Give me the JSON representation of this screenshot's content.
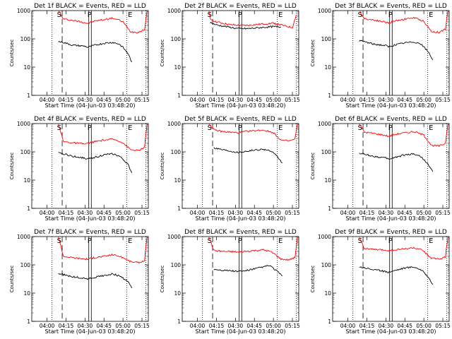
{
  "chart_data": [
    {
      "type": "line",
      "title": "Det 1f BLACK = Events, RED = LLD",
      "xlabel": "Start Time (04-Jun-03 03:48:20)",
      "ylabel": "Counts/sec",
      "x_ticks": [
        "04:00",
        "04:15",
        "04:30",
        "04:45",
        "05:00",
        "05:15"
      ],
      "y_ticks": [
        "1",
        "10",
        "100",
        "1000"
      ],
      "yscale": "log",
      "ylim": [
        1,
        1000
      ],
      "markers": [
        "S",
        "P",
        "E"
      ],
      "series": [
        {
          "color": "#ff0000",
          "x": [
            "04:09",
            "04:13",
            "04:20",
            "04:30",
            "04:32",
            "04:38",
            "04:45",
            "04:52",
            "04:57",
            "05:00",
            "05:06",
            "05:12",
            "05:17",
            "05:19"
          ],
          "values": [
            1000,
            500,
            450,
            380,
            350,
            430,
            480,
            540,
            460,
            400,
            180,
            170,
            210,
            1000
          ]
        },
        {
          "color": "#000000",
          "x": [
            "04:09",
            "04:13",
            "04:20",
            "04:30",
            "04:32",
            "04:38",
            "04:45",
            "04:52",
            "04:57",
            "05:00",
            "05:04",
            "05:07"
          ],
          "values": [
            80,
            75,
            60,
            55,
            50,
            60,
            70,
            75,
            65,
            50,
            30,
            15
          ]
        }
      ]
    },
    {
      "type": "line",
      "title": "Det 2f BLACK = Events, RED = LLD",
      "xlabel": "Start Time (04-Jun-03 03:48:20)",
      "ylabel": "Counts/sec",
      "x_ticks": [
        "04:00",
        "04:15",
        "04:30",
        "04:45",
        "05:00",
        "05:15"
      ],
      "y_ticks": [
        "1",
        "10",
        "100",
        "1000"
      ],
      "yscale": "log",
      "ylim": [
        1,
        1000
      ],
      "markers": [
        "S",
        "P",
        "E"
      ],
      "series": [
        {
          "color": "#ff0000",
          "x": [
            "04:09",
            "04:10",
            "04:15",
            "04:25",
            "04:32",
            "04:40",
            "04:50",
            "05:00",
            "05:10",
            "05:15",
            "05:18"
          ],
          "values": [
            1000,
            500,
            400,
            320,
            300,
            300,
            330,
            360,
            280,
            250,
            700
          ]
        },
        {
          "color": "#000000",
          "x": [
            "04:10",
            "04:15",
            "04:25",
            "04:32",
            "04:40",
            "04:50",
            "05:00",
            "05:06"
          ],
          "values": [
            380,
            310,
            260,
            230,
            230,
            250,
            270,
            260
          ]
        }
      ]
    },
    {
      "type": "line",
      "title": "Det 3f BLACK = Events, RED = LLD",
      "xlabel": "Start Time (04-Jun-03 03:48:20)",
      "ylabel": "Counts/sec",
      "x_ticks": [
        "04:00",
        "04:15",
        "04:30",
        "04:45",
        "05:00",
        "05:15"
      ],
      "y_ticks": [
        "1",
        "10",
        "100",
        "1000"
      ],
      "yscale": "log",
      "ylim": [
        1,
        1000
      ],
      "markers": [
        "S",
        "P",
        "E"
      ],
      "series": [
        {
          "color": "#ff0000",
          "x": [
            "04:09",
            "04:13",
            "04:20",
            "04:30",
            "04:32",
            "04:38",
            "04:45",
            "04:52",
            "04:57",
            "05:00",
            "05:06",
            "05:12",
            "05:17",
            "05:19"
          ],
          "values": [
            1000,
            520,
            470,
            390,
            360,
            440,
            500,
            560,
            470,
            420,
            180,
            170,
            220,
            1000
          ]
        },
        {
          "color": "#000000",
          "x": [
            "04:09",
            "04:13",
            "04:20",
            "04:30",
            "04:32",
            "04:38",
            "04:45",
            "04:52",
            "04:57",
            "05:00",
            "05:04",
            "05:07"
          ],
          "values": [
            85,
            80,
            65,
            58,
            52,
            62,
            72,
            78,
            68,
            52,
            32,
            18
          ]
        }
      ]
    },
    {
      "type": "line",
      "title": "Det 4f BLACK = Events, RED = LLD",
      "xlabel": "Start Time (04-Jun-03 03:48:20)",
      "ylabel": "Counts/sec",
      "x_ticks": [
        "04:00",
        "04:15",
        "04:30",
        "04:45",
        "05:00",
        "05:15"
      ],
      "y_ticks": [
        "1",
        "10",
        "100",
        "1000"
      ],
      "yscale": "log",
      "ylim": [
        1,
        1000
      ],
      "markers": [
        "S",
        "P",
        "E"
      ],
      "series": [
        {
          "color": "#ff0000",
          "x": [
            "04:09",
            "04:13",
            "04:20",
            "04:30",
            "04:32",
            "04:38",
            "04:45",
            "04:52",
            "04:57",
            "05:00",
            "05:06",
            "05:12",
            "05:17",
            "05:19"
          ],
          "values": [
            1000,
            230,
            210,
            190,
            200,
            230,
            260,
            280,
            240,
            210,
            120,
            110,
            140,
            1000
          ]
        },
        {
          "color": "#000000",
          "x": [
            "04:09",
            "04:13",
            "04:20",
            "04:30",
            "04:32",
            "04:38",
            "04:45",
            "04:52",
            "04:57",
            "05:00",
            "05:04",
            "05:07"
          ],
          "values": [
            90,
            85,
            70,
            60,
            55,
            65,
            78,
            85,
            70,
            55,
            35,
            18
          ]
        }
      ]
    },
    {
      "type": "line",
      "title": "Det 5f BLACK = Events, RED = LLD",
      "xlabel": "Start Time (04-Jun-03 03:48:20)",
      "ylabel": "Counts/sec",
      "x_ticks": [
        "04:00",
        "04:15",
        "04:30",
        "04:45",
        "05:00",
        "05:15"
      ],
      "y_ticks": [
        "1",
        "10",
        "100",
        "1000"
      ],
      "yscale": "log",
      "ylim": [
        1,
        1000
      ],
      "markers": [
        "S",
        "P",
        "E"
      ],
      "series": [
        {
          "color": "#ff0000",
          "x": [
            "04:09",
            "04:13",
            "04:20",
            "04:30",
            "04:32",
            "04:38",
            "04:45",
            "04:52",
            "04:57",
            "05:00",
            "05:06",
            "05:12",
            "05:17",
            "05:19"
          ],
          "values": [
            1000,
            600,
            520,
            480,
            470,
            530,
            560,
            590,
            520,
            480,
            260,
            240,
            280,
            1000
          ]
        },
        {
          "color": "#000000",
          "x": [
            "04:13",
            "04:20",
            "04:30",
            "04:32",
            "04:38",
            "04:45",
            "04:52",
            "04:57",
            "05:00",
            "05:04",
            "05:07"
          ],
          "values": [
            140,
            120,
            100,
            95,
            105,
            115,
            125,
            110,
            90,
            60,
            40
          ]
        }
      ]
    },
    {
      "type": "line",
      "title": "Det 6f BLACK = Events, RED = LLD",
      "xlabel": "Start Time (04-Jun-03 03:48:20)",
      "ylabel": "Counts/sec",
      "x_ticks": [
        "04:00",
        "04:15",
        "04:30",
        "04:45",
        "05:00",
        "05:15"
      ],
      "y_ticks": [
        "1",
        "10",
        "100",
        "1000"
      ],
      "yscale": "log",
      "ylim": [
        1,
        1000
      ],
      "markers": [
        "S",
        "P",
        "E"
      ],
      "series": [
        {
          "color": "#ff0000",
          "x": [
            "04:09",
            "04:13",
            "04:20",
            "04:30",
            "04:32",
            "04:38",
            "04:45",
            "04:52",
            "04:57",
            "05:00",
            "05:06",
            "05:12",
            "05:17",
            "05:19"
          ],
          "values": [
            1000,
            500,
            450,
            380,
            350,
            420,
            470,
            520,
            440,
            390,
            170,
            160,
            200,
            1000
          ]
        },
        {
          "color": "#000000",
          "x": [
            "04:09",
            "04:13",
            "04:20",
            "04:30",
            "04:32",
            "04:38",
            "04:45",
            "04:52",
            "04:57",
            "05:00",
            "05:04",
            "05:07"
          ],
          "values": [
            90,
            82,
            70,
            60,
            55,
            65,
            78,
            85,
            70,
            55,
            32,
            20
          ]
        }
      ]
    },
    {
      "type": "line",
      "title": "Det 7f BLACK = Events, RED = LLD",
      "xlabel": "Start Time (04-Jun-03 03:48:20)",
      "ylabel": "Counts/sec",
      "x_ticks": [
        "04:00",
        "04:15",
        "04:30",
        "04:45",
        "05:00",
        "05:15"
      ],
      "y_ticks": [
        "1",
        "10",
        "100",
        "1000"
      ],
      "yscale": "log",
      "ylim": [
        1,
        1000
      ],
      "markers": [
        "S",
        "P",
        "E"
      ],
      "series": [
        {
          "color": "#ff0000",
          "x": [
            "04:09",
            "04:13",
            "04:20",
            "04:30",
            "04:32",
            "04:38",
            "04:45",
            "04:52",
            "04:57",
            "05:00",
            "05:06",
            "05:12",
            "05:17",
            "05:19"
          ],
          "values": [
            1000,
            200,
            180,
            160,
            160,
            180,
            200,
            230,
            200,
            180,
            130,
            120,
            140,
            1000
          ]
        },
        {
          "color": "#000000",
          "x": [
            "04:09",
            "04:13",
            "04:20",
            "04:30",
            "04:32",
            "04:38",
            "04:45",
            "04:52",
            "04:57",
            "05:00",
            "05:04",
            "05:07"
          ],
          "values": [
            50,
            45,
            38,
            33,
            32,
            36,
            42,
            48,
            40,
            34,
            25,
            15
          ]
        }
      ]
    },
    {
      "type": "line",
      "title": "Det 8f BLACK = Events, RED = LLD",
      "xlabel": "Start Time (04-Jun-03 03:48:20)",
      "ylabel": "Counts/sec",
      "x_ticks": [
        "04:00",
        "04:15",
        "04:30",
        "04:45",
        "05:00",
        "05:15"
      ],
      "y_ticks": [
        "1",
        "10",
        "100",
        "1000"
      ],
      "yscale": "log",
      "ylim": [
        1,
        1000
      ],
      "markers": [
        "S",
        "P",
        "E"
      ],
      "series": [
        {
          "color": "#ff0000",
          "x": [
            "04:09",
            "04:13",
            "04:20",
            "04:30",
            "04:32",
            "04:38",
            "04:45",
            "04:52",
            "04:57",
            "05:00",
            "05:06",
            "05:12",
            "05:17",
            "05:19"
          ],
          "values": [
            1000,
            320,
            300,
            290,
            280,
            300,
            320,
            340,
            300,
            260,
            160,
            150,
            180,
            1000
          ]
        },
        {
          "color": "#000000",
          "x": [
            "04:13",
            "04:20",
            "04:30",
            "04:32",
            "04:38",
            "04:45",
            "04:52",
            "04:57",
            "05:00",
            "05:04",
            "05:07"
          ],
          "values": [
            70,
            65,
            60,
            58,
            62,
            72,
            85,
            95,
            75,
            55,
            40
          ]
        }
      ]
    },
    {
      "type": "line",
      "title": "Det 9f BLACK = Events, RED = LLD",
      "xlabel": "Start Time (04-Jun-03 03:48:20)",
      "ylabel": "Counts/sec",
      "x_ticks": [
        "04:00",
        "04:15",
        "04:30",
        "04:45",
        "05:00",
        "05:15"
      ],
      "y_ticks": [
        "1",
        "10",
        "100",
        "1000"
      ],
      "yscale": "log",
      "ylim": [
        1,
        1000
      ],
      "markers": [
        "S",
        "P",
        "E"
      ],
      "series": [
        {
          "color": "#ff0000",
          "x": [
            "04:09",
            "04:13",
            "04:20",
            "04:30",
            "04:32",
            "04:38",
            "04:45",
            "04:52",
            "04:57",
            "05:00",
            "05:06",
            "05:12",
            "05:17",
            "05:19"
          ],
          "values": [
            1000,
            380,
            350,
            330,
            320,
            340,
            370,
            400,
            350,
            300,
            170,
            160,
            190,
            1000
          ]
        },
        {
          "color": "#000000",
          "x": [
            "04:09",
            "04:13",
            "04:20",
            "04:30",
            "04:32",
            "04:38",
            "04:45",
            "04:52",
            "04:57",
            "05:00",
            "05:04",
            "05:07"
          ],
          "values": [
            85,
            80,
            68,
            58,
            55,
            65,
            78,
            85,
            70,
            55,
            35,
            20
          ]
        }
      ]
    }
  ]
}
